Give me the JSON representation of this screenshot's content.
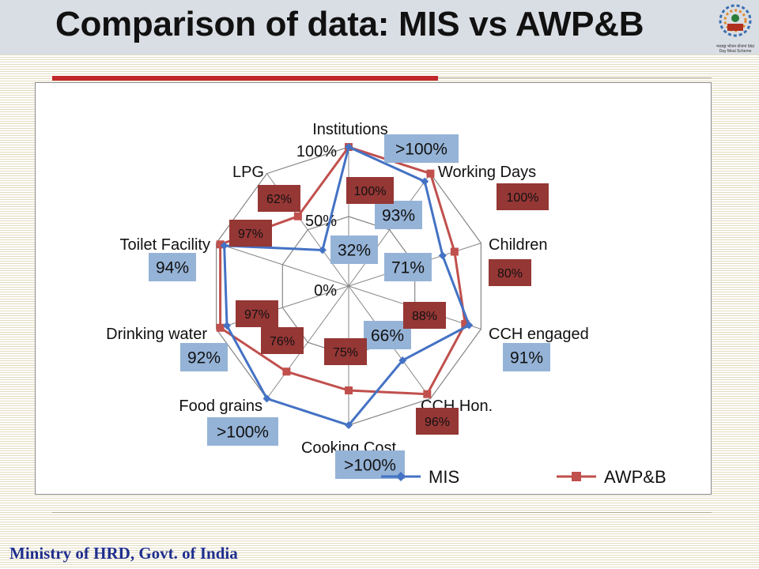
{
  "slide": {
    "title": "Comparison of data: MIS vs AWP&B",
    "footer": "Ministry of HRD, Govt. of India",
    "logo_caption": "मध्याह्न भोजन योजना\nMid Day Meal Scheme"
  },
  "colors": {
    "mis": "#4472c4",
    "awpb": "#c0504d",
    "mis_badge": "#95b3d7",
    "awpb_badge": "#953735",
    "grid": "#878787"
  },
  "chart_data": {
    "type": "radar",
    "categories": [
      "Institutions",
      "Working Days",
      "Children",
      "CCH engaged",
      "CCH Hon.",
      "Cooking Cost",
      "Food grains",
      "Drinking water",
      "Toilet Facility",
      "LPG"
    ],
    "tick_labels": [
      "0%",
      "50%",
      "100%"
    ],
    "rmax": 1.0,
    "series": [
      {
        "name": "MIS",
        "values": [
          1.0,
          0.93,
          0.71,
          0.91,
          0.66,
          1.0,
          1.0,
          0.92,
          0.94,
          0.32
        ]
      },
      {
        "name": "AWP&B",
        "values": [
          1.0,
          1.0,
          0.8,
          0.88,
          0.96,
          0.75,
          0.76,
          0.97,
          0.97,
          0.62
        ]
      }
    ],
    "mis_annotations": [
      ">100%",
      "93%",
      "71%",
      "91%",
      "66%",
      ">100%",
      ">100%",
      "92%",
      "94%",
      "32%"
    ],
    "awpb_annotations": [
      "100%",
      "100%",
      "80%",
      "88%",
      "96%",
      "75%",
      "76%",
      "97%",
      "97%",
      "62%"
    ],
    "grid": true,
    "legend_position": "bottom"
  }
}
